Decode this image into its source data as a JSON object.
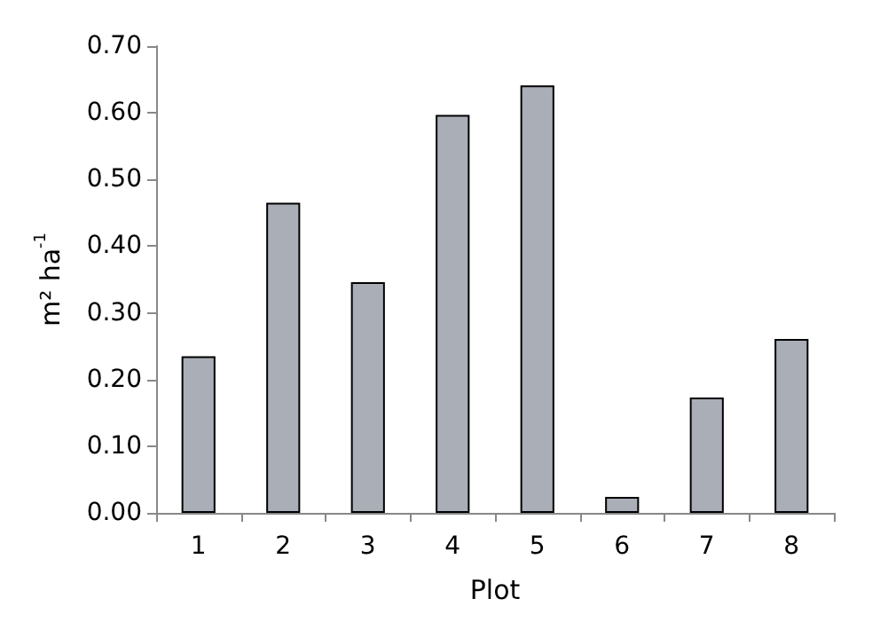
{
  "chart_data": {
    "type": "bar",
    "xlabel": "Plot",
    "ylabel": "m² ha$^{-1}$",
    "categories": [
      "1",
      "2",
      "3",
      "4",
      "5",
      "6",
      "7",
      "8"
    ],
    "values": [
      0.235,
      0.465,
      0.346,
      0.597,
      0.641,
      0.024,
      0.173,
      0.261
    ],
    "color": "#a9aeb7",
    "ylim": [
      0,
      0.7
    ],
    "yticks": [
      {
        "value": 0,
        "label": "0.00"
      },
      {
        "value": 0.1,
        "label": "0.10"
      },
      {
        "value": 0.2,
        "label": "0.20"
      },
      {
        "value": 0.3,
        "label": "0.30"
      },
      {
        "value": 0.4,
        "label": "0.40"
      },
      {
        "value": 0.5,
        "label": "0.50"
      },
      {
        "value": 0.6,
        "label": "0.60"
      },
      {
        "value": 0.7,
        "label": "0.70"
      }
    ],
    "grid": false
  }
}
